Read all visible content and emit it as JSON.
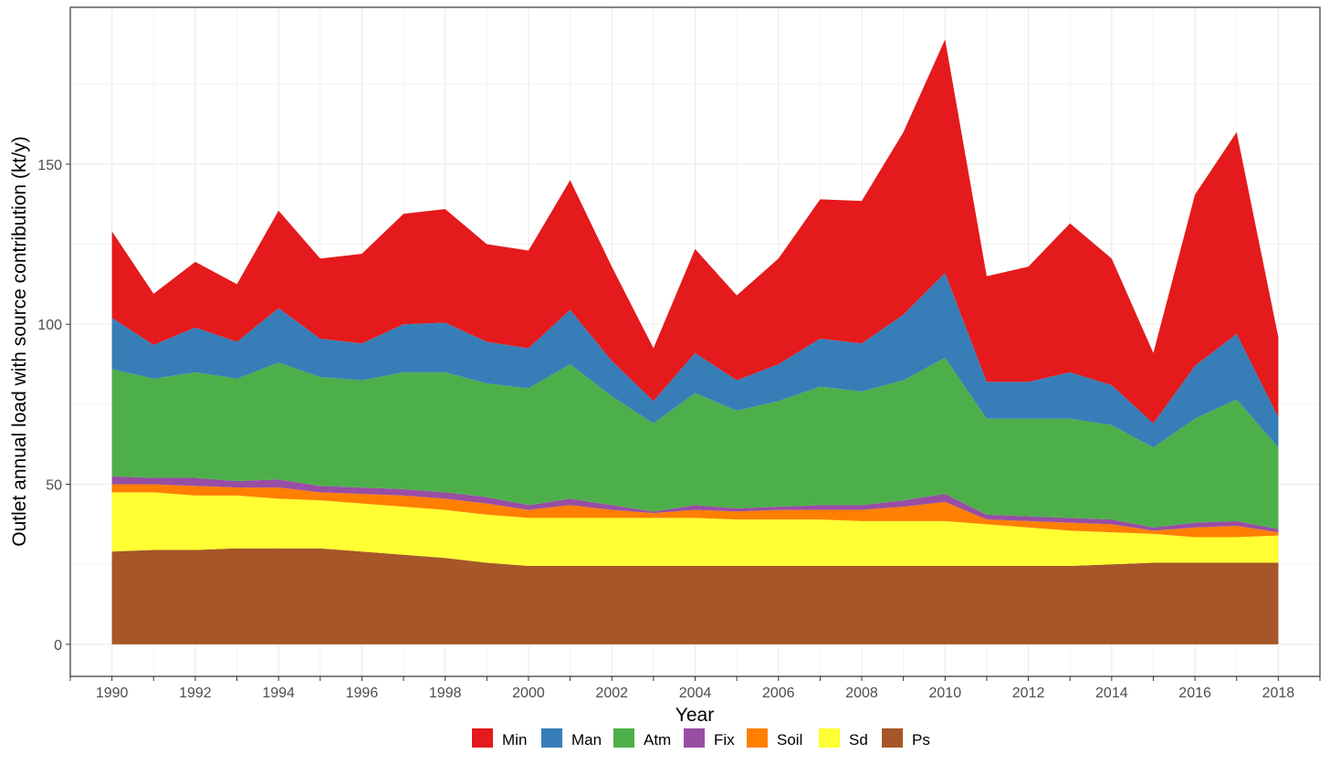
{
  "chart_data": {
    "type": "area",
    "stacked": true,
    "xlabel": "Year",
    "ylabel": "Outlet annual load with source contribution (kt/y)",
    "xlim": [
      1989,
      2019
    ],
    "ylim": [
      -10,
      199
    ],
    "x_ticks": [
      1990,
      1992,
      1994,
      1996,
      1998,
      2000,
      2002,
      2004,
      2006,
      2008,
      2010,
      2012,
      2014,
      2016,
      2018
    ],
    "y_ticks": [
      0,
      50,
      100,
      150
    ],
    "grid": true,
    "legend_position": "bottom",
    "x": [
      1990,
      1991,
      1992,
      1993,
      1994,
      1995,
      1996,
      1997,
      1998,
      1999,
      2000,
      2001,
      2002,
      2003,
      2004,
      2005,
      2006,
      2007,
      2008,
      2009,
      2010,
      2011,
      2012,
      2013,
      2014,
      2015,
      2016,
      2017,
      2018
    ],
    "stack_order_bottom_to_top": [
      "Ps",
      "Sd",
      "Soil",
      "Fix",
      "Atm",
      "Man",
      "Min"
    ],
    "series": [
      {
        "name": "Min",
        "color": "#e41a1c",
        "values": [
          27,
          16,
          20.5,
          18,
          30.5,
          25,
          28,
          34.5,
          35.5,
          30.5,
          30.5,
          40.5,
          29.5,
          16.5,
          32.5,
          26.5,
          33,
          43.5,
          44.5,
          57,
          73,
          33,
          36,
          46.5,
          39.5,
          22,
          53.5,
          63,
          25
        ]
      },
      {
        "name": "Man",
        "color": "#377eb8",
        "values": [
          16,
          10.5,
          14,
          11.5,
          17,
          12,
          11.5,
          15,
          15.5,
          13,
          12.5,
          17,
          11,
          7,
          12.5,
          9.5,
          11.5,
          15,
          15,
          20.5,
          26.5,
          11.5,
          11.5,
          14.5,
          12.5,
          7.5,
          16.5,
          20.5,
          9.5
        ]
      },
      {
        "name": "Atm",
        "color": "#4daf4a",
        "values": [
          33.5,
          31,
          33,
          32,
          36.5,
          34,
          33.5,
          36.5,
          37.5,
          35.5,
          36.5,
          42,
          34,
          27.5,
          35,
          30.5,
          33,
          37,
          35.5,
          37.5,
          42.5,
          30,
          30.5,
          31,
          29.5,
          25,
          32.5,
          38,
          25.5
        ]
      },
      {
        "name": "Fix",
        "color": "#984ea3",
        "values": [
          2.5,
          2,
          2.5,
          2,
          2.5,
          2,
          2,
          2,
          2,
          2,
          1.5,
          2,
          1.5,
          0.5,
          1.5,
          1,
          1,
          1.5,
          1.5,
          2,
          2.5,
          1.5,
          1.5,
          1.5,
          1.5,
          1,
          1.5,
          1.5,
          1
        ]
      },
      {
        "name": "Soil",
        "color": "#ff7f00",
        "values": [
          2.5,
          2.5,
          3,
          2.5,
          3.5,
          2.5,
          3,
          3.5,
          3.5,
          3.5,
          2.5,
          4,
          2.5,
          1.5,
          2.5,
          2.5,
          3,
          3,
          3.5,
          4.5,
          6,
          1.5,
          2,
          2.5,
          2.5,
          1,
          3,
          3.5,
          1
        ]
      },
      {
        "name": "Sd",
        "color": "#ffff33",
        "values": [
          18.5,
          18,
          17,
          16.5,
          15.5,
          15,
          15,
          15,
          15,
          15,
          15,
          15,
          15,
          15,
          15,
          14.5,
          14.5,
          14.5,
          14,
          14,
          14,
          13,
          12,
          11,
          10,
          9,
          8,
          8,
          8.5
        ]
      },
      {
        "name": "Ps",
        "color": "#a65628",
        "values": [
          29,
          29.5,
          29.5,
          30,
          30,
          30,
          29,
          28,
          27,
          25.5,
          24.5,
          24.5,
          24.5,
          24.5,
          24.5,
          24.5,
          24.5,
          24.5,
          24.5,
          24.5,
          24.5,
          24.5,
          24.5,
          24.5,
          25,
          25.5,
          25.5,
          25.5,
          25.5
        ]
      }
    ],
    "legend": [
      "Min",
      "Man",
      "Atm",
      "Fix",
      "Soil",
      "Sd",
      "Ps"
    ]
  }
}
